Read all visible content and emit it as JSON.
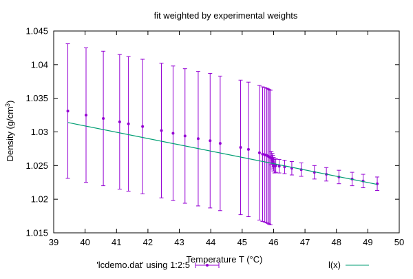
{
  "chart_data": {
    "type": "scatter",
    "title": "fit weighted by experimental weights",
    "xlabel": "Temperature T (°C)",
    "ylabel": "Density (g/cm³)",
    "ylabel_main": "Density (g/cm",
    "ylabel_sup": "3",
    "ylabel_tail": ")",
    "xlim": [
      39,
      50
    ],
    "ylim": [
      1.015,
      1.045
    ],
    "xticks": [
      39,
      40,
      41,
      42,
      43,
      44,
      45,
      46,
      47,
      48,
      49,
      50
    ],
    "yticks": [
      1.015,
      1.02,
      1.025,
      1.03,
      1.035,
      1.04,
      1.045
    ],
    "grid": false,
    "legend_position": "bottom",
    "series": [
      {
        "name": "'lcdemo.dat' using 1:2:5",
        "kind": "points-with-errorbars",
        "color": "#9400d3",
        "points": [
          {
            "x": 39.45,
            "y": 1.0331,
            "err": 0.01
          },
          {
            "x": 40.03,
            "y": 1.0325,
            "err": 0.01
          },
          {
            "x": 40.58,
            "y": 1.032,
            "err": 0.01
          },
          {
            "x": 41.1,
            "y": 1.0315,
            "err": 0.01
          },
          {
            "x": 41.38,
            "y": 1.0312,
            "err": 0.01
          },
          {
            "x": 41.83,
            "y": 1.0308,
            "err": 0.01
          },
          {
            "x": 42.43,
            "y": 1.0302,
            "err": 0.01
          },
          {
            "x": 42.8,
            "y": 1.0298,
            "err": 0.01
          },
          {
            "x": 43.18,
            "y": 1.0294,
            "err": 0.01
          },
          {
            "x": 43.6,
            "y": 1.029,
            "err": 0.01
          },
          {
            "x": 43.98,
            "y": 1.0287,
            "err": 0.01
          },
          {
            "x": 44.3,
            "y": 1.0283,
            "err": 0.01
          },
          {
            "x": 44.95,
            "y": 1.0277,
            "err": 0.01
          },
          {
            "x": 45.2,
            "y": 1.0274,
            "err": 0.01
          },
          {
            "x": 45.55,
            "y": 1.0269,
            "err": 0.01
          },
          {
            "x": 45.65,
            "y": 1.0267,
            "err": 0.01
          },
          {
            "x": 45.72,
            "y": 1.0266,
            "err": 0.01
          },
          {
            "x": 45.78,
            "y": 1.0265,
            "err": 0.01
          },
          {
            "x": 45.82,
            "y": 1.0264,
            "err": 0.01
          },
          {
            "x": 45.86,
            "y": 1.0263,
            "err": 0.01
          },
          {
            "x": 45.9,
            "y": 1.0262,
            "err": 0.01
          },
          {
            "x": 45.93,
            "y": 1.0261,
            "err": 0.001
          },
          {
            "x": 45.96,
            "y": 1.0258,
            "err": 0.001
          },
          {
            "x": 45.98,
            "y": 1.0255,
            "err": 0.001
          },
          {
            "x": 46.0,
            "y": 1.0252,
            "err": 0.001
          },
          {
            "x": 46.03,
            "y": 1.0249,
            "err": 0.001
          },
          {
            "x": 46.07,
            "y": 1.025,
            "err": 0.001
          },
          {
            "x": 46.18,
            "y": 1.0249,
            "err": 0.001
          },
          {
            "x": 46.35,
            "y": 1.0248,
            "err": 0.001
          },
          {
            "x": 46.58,
            "y": 1.0246,
            "err": 0.001
          },
          {
            "x": 46.88,
            "y": 1.0244,
            "err": 0.001
          },
          {
            "x": 47.3,
            "y": 1.024,
            "err": 0.001
          },
          {
            "x": 47.68,
            "y": 1.0237,
            "err": 0.001
          },
          {
            "x": 48.08,
            "y": 1.0233,
            "err": 0.001
          },
          {
            "x": 48.5,
            "y": 1.023,
            "err": 0.001
          },
          {
            "x": 48.85,
            "y": 1.0227,
            "err": 0.001
          },
          {
            "x": 49.3,
            "y": 1.0223,
            "err": 0.001
          }
        ]
      },
      {
        "name": "l(x)",
        "kind": "line",
        "color": "#009e73",
        "x": [
          39.45,
          49.3
        ],
        "y": [
          1.0314,
          1.0222
        ]
      }
    ]
  }
}
